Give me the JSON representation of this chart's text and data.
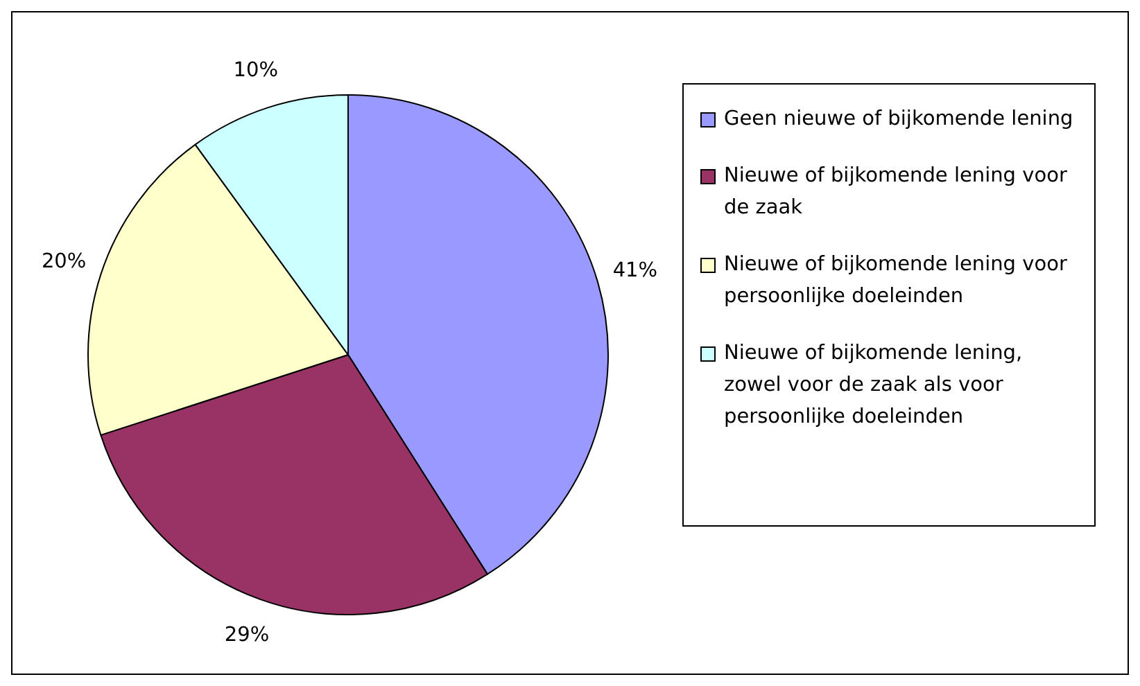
{
  "chart_data": {
    "type": "pie",
    "categories": [
      "Geen nieuwe of bijkomende lening",
      "Nieuwe of bijkomende lening voor de zaak",
      "Nieuwe of bijkomende lening voor persoonlijke doeleinden",
      "Nieuwe of bijkomende lening, zowel voor de zaak als voor persoonlijke doeleinden"
    ],
    "values": [
      41,
      29,
      20,
      10
    ],
    "colors": [
      "#9999ff",
      "#993366",
      "#ffffcc",
      "#ccffff"
    ],
    "value_labels": [
      "41%",
      "29%",
      "20%",
      "10%"
    ],
    "legend": "right"
  }
}
